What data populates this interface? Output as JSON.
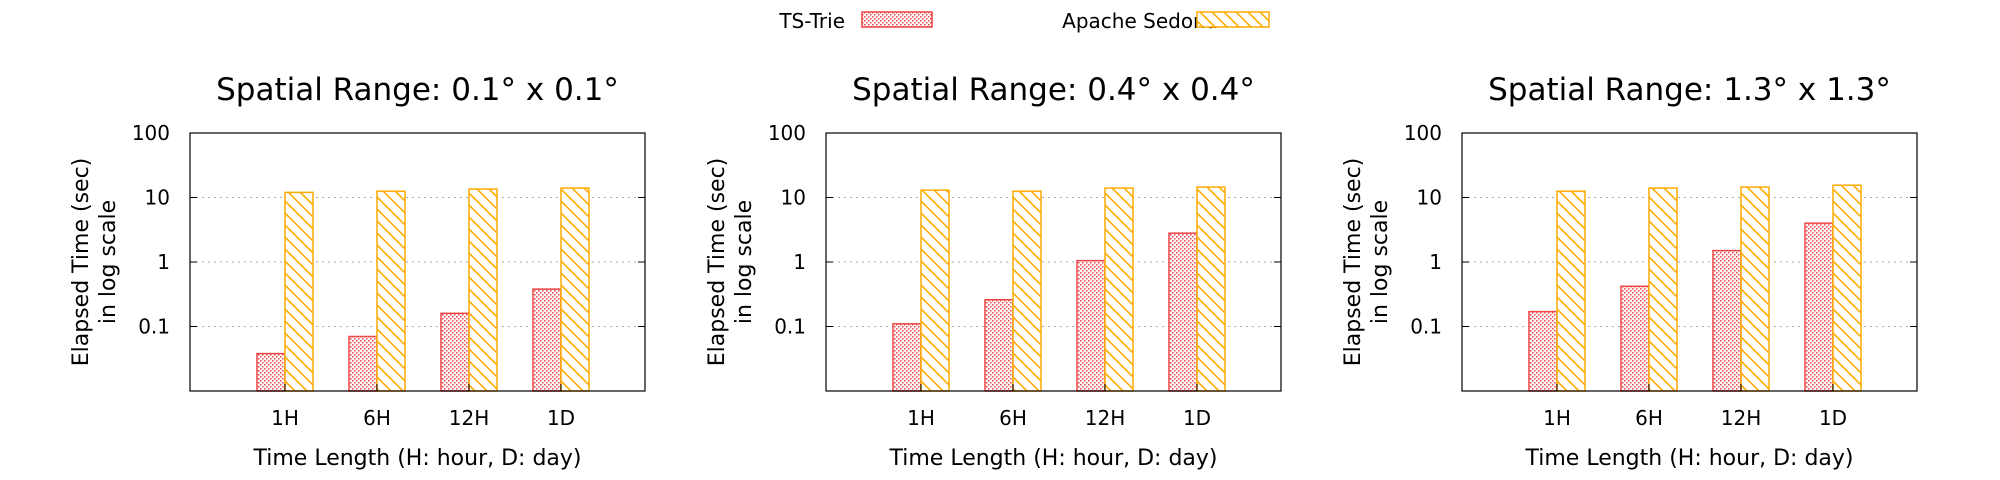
{
  "legend": {
    "items": [
      {
        "label": "TS-Trie",
        "color": "#ee4444",
        "pattern": "crosshatch"
      },
      {
        "label": "Apache Sedona",
        "color": "#ffaa00",
        "pattern": "diagonal-stripes"
      }
    ]
  },
  "chart_data": [
    {
      "type": "bar",
      "title": "Spatial Range: 0.1° x 0.1°",
      "xlabel": "Time Length (H: hour, D: day)",
      "ylabel": [
        "Elapsed Time (sec)",
        "in log scale"
      ],
      "yscale": "log",
      "ylim": [
        0.01,
        100
      ],
      "yticks": [
        "100",
        "10",
        "1",
        "0.1"
      ],
      "grid": "horizontal dotted",
      "categories": [
        "1H",
        "6H",
        "12H",
        "1D"
      ],
      "series": [
        {
          "name": "TS-Trie",
          "values": [
            0.038,
            0.07,
            0.16,
            0.38
          ]
        },
        {
          "name": "Apache Sedona",
          "values": [
            12,
            12.5,
            13.5,
            14
          ]
        }
      ]
    },
    {
      "type": "bar",
      "title": "Spatial Range: 0.4° x 0.4°",
      "xlabel": "Time Length (H: hour, D: day)",
      "ylabel": [
        "Elapsed Time (sec)",
        "in log scale"
      ],
      "yscale": "log",
      "ylim": [
        0.01,
        100
      ],
      "yticks": [
        "100",
        "10",
        "1",
        "0.1"
      ],
      "grid": "horizontal dotted",
      "categories": [
        "1H",
        "6H",
        "12H",
        "1D"
      ],
      "series": [
        {
          "name": "TS-Trie",
          "values": [
            0.11,
            0.26,
            1.05,
            2.8
          ]
        },
        {
          "name": "Apache Sedona",
          "values": [
            13,
            12.5,
            14,
            14.5
          ]
        }
      ]
    },
    {
      "type": "bar",
      "title": "Spatial Range: 1.3° x 1.3°",
      "xlabel": "Time Length (H: hour, D: day)",
      "ylabel": [
        "Elapsed Time (sec)",
        "in log scale"
      ],
      "yscale": "log",
      "ylim": [
        0.01,
        100
      ],
      "yticks": [
        "100",
        "10",
        "1",
        "0.1"
      ],
      "grid": "horizontal dotted",
      "categories": [
        "1H",
        "6H",
        "12H",
        "1D"
      ],
      "series": [
        {
          "name": "TS-Trie",
          "values": [
            0.17,
            0.42,
            1.5,
            4.0
          ]
        },
        {
          "name": "Apache Sedona",
          "values": [
            12.5,
            14,
            14.5,
            15.5
          ]
        }
      ]
    }
  ]
}
